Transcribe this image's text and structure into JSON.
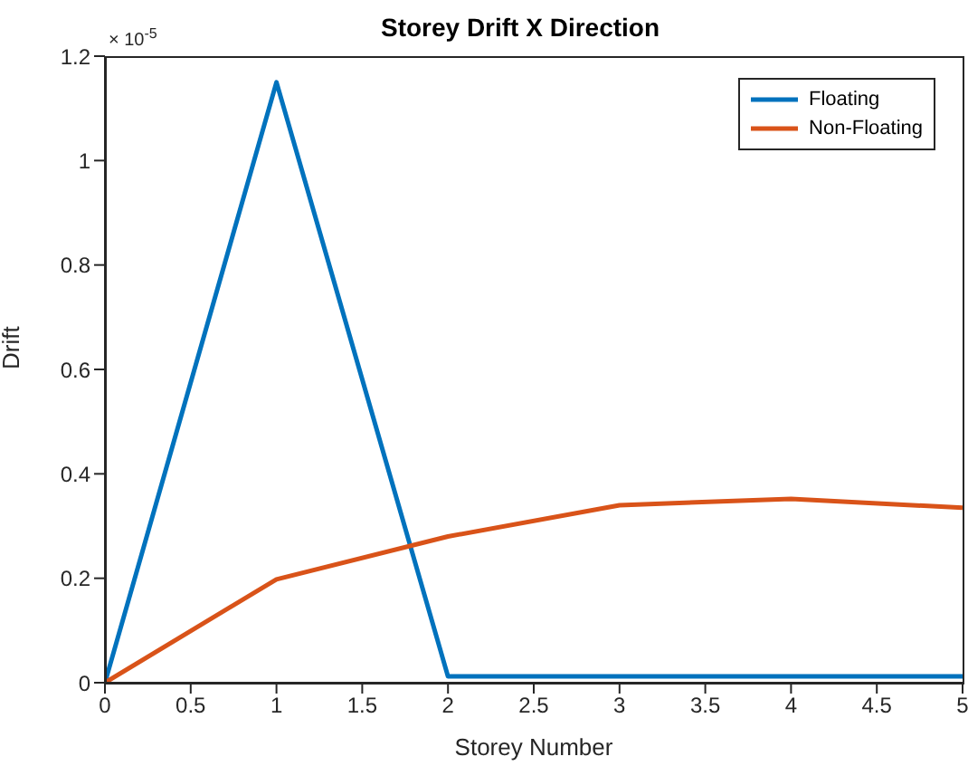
{
  "chart_data": {
    "type": "line",
    "title": "Storey Drift X Direction",
    "xlabel": "Storey Number",
    "ylabel": "Drift",
    "annotations": [
      "× 10$^{-5}$"
    ],
    "x": [
      0,
      1,
      2,
      3,
      4,
      5
    ],
    "series": [
      {
        "name": "Floating",
        "color": "#0072bd",
        "values": [
          0,
          1.15,
          0.012,
          0.012,
          0.012,
          0.012
        ]
      },
      {
        "name": "Non-Floating",
        "color": "#d95319",
        "values": [
          0,
          0.198,
          0.28,
          0.34,
          0.352,
          0.335
        ]
      }
    ],
    "xlim": [
      0,
      5
    ],
    "xticks": [
      0,
      0.5,
      1,
      1.5,
      2,
      2.5,
      3,
      3.5,
      4,
      4.5,
      5
    ],
    "ylim": [
      0,
      1.2
    ],
    "yticks": [
      0,
      0.2,
      0.4,
      0.6,
      0.8,
      1,
      1.2
    ],
    "grid": false,
    "legend": "top right",
    "marker": "none",
    "line_style": "solid"
  }
}
